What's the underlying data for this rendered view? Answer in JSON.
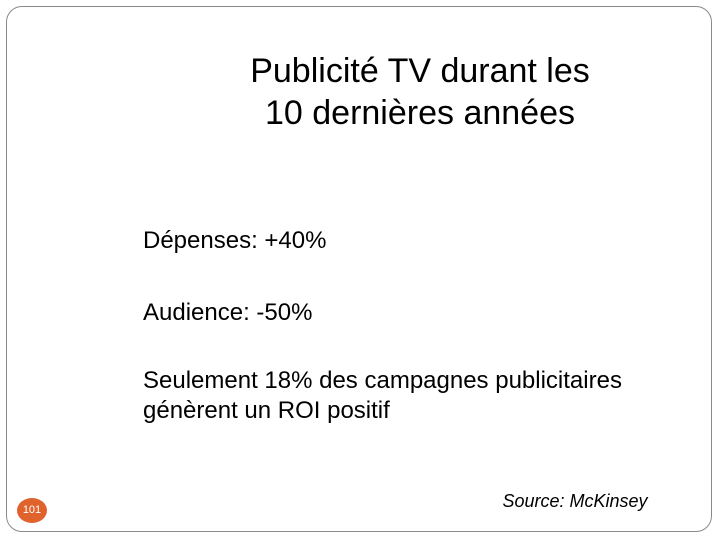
{
  "slide": {
    "title_lines": [
      "Publicité TV durant les",
      "10 dernières années"
    ],
    "bullets": [
      "Dépenses: +40%",
      "Audience: -50%",
      "Seulement 18% des campagnes publicitaires génèrent un ROI positif"
    ],
    "source": "Source: McKinsey",
    "page_number": "101"
  },
  "colors": {
    "page_badge": "#e0632e",
    "frame_border": "#8a8a8a",
    "text": "#000000"
  }
}
